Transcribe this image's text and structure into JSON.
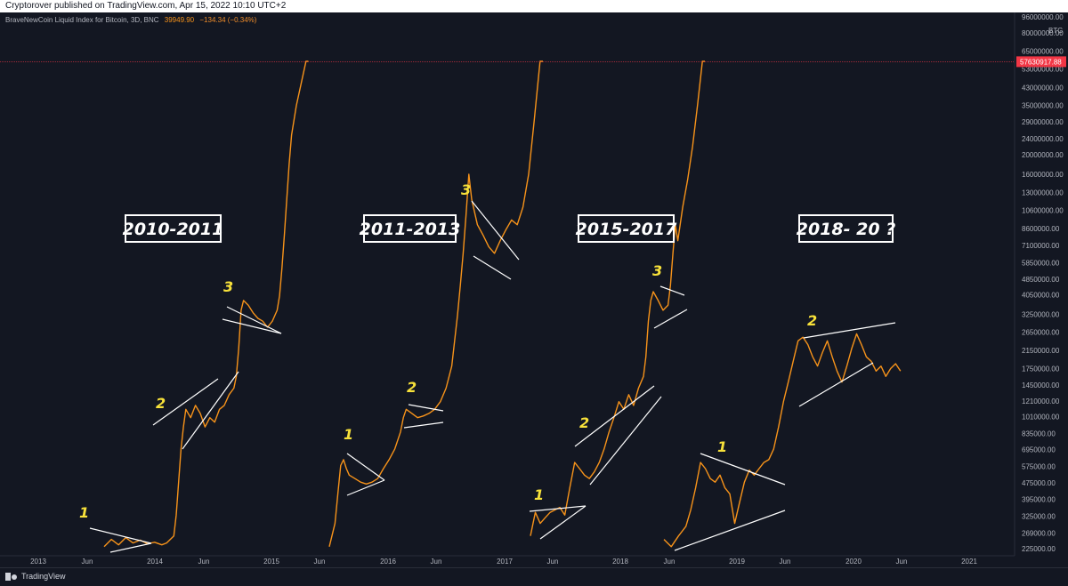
{
  "header": {
    "published": "Cryptorover published on TradingView.com, Apr 15, 2022 10:10 UTC+2"
  },
  "legend": {
    "title": "BraveNewCoin Liquid Index for Bitcoin, 3D, BNC",
    "value": "39949.90",
    "change": "−134.34 (−0.34%)"
  },
  "footer": {
    "brand": "TradingView"
  },
  "colors": {
    "background": "#131722",
    "price_line": "#f7931a",
    "trend_lines": "#ffffff",
    "labels": "#f7e13a",
    "price_tag": "#f23645"
  },
  "chart_data": {
    "type": "line",
    "scale": "log",
    "currency_label": "BTC",
    "y_ticks": [
      "225000.00",
      "269000.00",
      "325000.00",
      "395000.00",
      "475000.00",
      "575000.00",
      "695000.00",
      "835000.00",
      "1010000.00",
      "1210000.00",
      "1450000.00",
      "1750000.00",
      "2150000.00",
      "2650000.00",
      "3250000.00",
      "4050000.00",
      "4850000.00",
      "5850000.00",
      "7100000.00",
      "8600000.00",
      "10600000.00",
      "13000000.00",
      "16000000.00",
      "20000000.00",
      "24000000.00",
      "29000000.00",
      "35000000.00",
      "43000000.00",
      "53000000.00",
      "65000000.00",
      "80000000.00",
      "96000000.00"
    ],
    "x_ticks": [
      "2013",
      "Jun",
      "2014",
      "Jun",
      "2015",
      "Jun",
      "2016",
      "Jun",
      "2017",
      "Jun",
      "2018",
      "Jun",
      "2019",
      "Jun",
      "2020",
      "Jun",
      "2021"
    ],
    "current_price_tag": "57630917.88",
    "periods": [
      {
        "label": "2010-2011",
        "annotations": [
          "1",
          "2",
          "3"
        ],
        "series": [
          [
            0,
            230000
          ],
          [
            6,
            250000
          ],
          [
            12,
            235000
          ],
          [
            18,
            255000
          ],
          [
            24,
            240000
          ],
          [
            30,
            248000
          ],
          [
            36,
            238000
          ],
          [
            42,
            242000
          ],
          [
            48,
            235000
          ],
          [
            52,
            240000
          ],
          [
            58,
            260000
          ],
          [
            60,
            330000
          ],
          [
            62,
            480000
          ],
          [
            64,
            700000
          ],
          [
            66,
            900000
          ],
          [
            68,
            1100000
          ],
          [
            72,
            1000000
          ],
          [
            76,
            1150000
          ],
          [
            80,
            1050000
          ],
          [
            84,
            900000
          ],
          [
            88,
            1000000
          ],
          [
            92,
            950000
          ],
          [
            96,
            1100000
          ],
          [
            100,
            1150000
          ],
          [
            104,
            1300000
          ],
          [
            108,
            1400000
          ],
          [
            110,
            1600000
          ],
          [
            112,
            2200000
          ],
          [
            114,
            3400000
          ],
          [
            116,
            3800000
          ],
          [
            120,
            3600000
          ],
          [
            124,
            3300000
          ],
          [
            128,
            3100000
          ],
          [
            132,
            3000000
          ],
          [
            136,
            2800000
          ],
          [
            140,
            3000000
          ],
          [
            144,
            3400000
          ],
          [
            146,
            4000000
          ],
          [
            148,
            5500000
          ],
          [
            150,
            8000000
          ],
          [
            152,
            12000000
          ],
          [
            154,
            18000000
          ],
          [
            156,
            25000000
          ],
          [
            160,
            35000000
          ],
          [
            164,
            45000000
          ],
          [
            168,
            60000000
          ],
          [
            170,
            80000000
          ]
        ]
      },
      {
        "label": "2011-2013",
        "annotations": [
          "1",
          "2",
          "3"
        ],
        "series": [
          [
            0,
            230000
          ],
          [
            4,
            300000
          ],
          [
            6,
            420000
          ],
          [
            8,
            580000
          ],
          [
            10,
            620000
          ],
          [
            12,
            560000
          ],
          [
            14,
            520000
          ],
          [
            18,
            500000
          ],
          [
            22,
            480000
          ],
          [
            26,
            470000
          ],
          [
            30,
            480000
          ],
          [
            34,
            500000
          ],
          [
            38,
            560000
          ],
          [
            42,
            620000
          ],
          [
            46,
            700000
          ],
          [
            50,
            850000
          ],
          [
            52,
            1000000
          ],
          [
            54,
            1100000
          ],
          [
            58,
            1050000
          ],
          [
            62,
            1000000
          ],
          [
            66,
            1020000
          ],
          [
            70,
            1050000
          ],
          [
            74,
            1100000
          ],
          [
            78,
            1200000
          ],
          [
            82,
            1400000
          ],
          [
            86,
            1800000
          ],
          [
            88,
            2400000
          ],
          [
            90,
            3200000
          ],
          [
            92,
            4500000
          ],
          [
            94,
            6500000
          ],
          [
            96,
            10000000
          ],
          [
            98,
            16000000
          ],
          [
            100,
            12000000
          ],
          [
            104,
            9000000
          ],
          [
            108,
            8000000
          ],
          [
            112,
            7000000
          ],
          [
            116,
            6500000
          ],
          [
            120,
            7500000
          ],
          [
            124,
            8500000
          ],
          [
            128,
            9500000
          ],
          [
            132,
            9000000
          ],
          [
            136,
            11000000
          ],
          [
            140,
            16000000
          ],
          [
            144,
            30000000
          ],
          [
            148,
            60000000
          ],
          [
            150,
            80000000
          ]
        ]
      },
      {
        "label": "2015-2017",
        "annotations": [
          "1",
          "2",
          "3"
        ],
        "series": [
          [
            0,
            260000
          ],
          [
            4,
            340000
          ],
          [
            8,
            300000
          ],
          [
            12,
            320000
          ],
          [
            16,
            340000
          ],
          [
            20,
            350000
          ],
          [
            24,
            360000
          ],
          [
            28,
            330000
          ],
          [
            32,
            450000
          ],
          [
            36,
            600000
          ],
          [
            40,
            560000
          ],
          [
            44,
            520000
          ],
          [
            48,
            500000
          ],
          [
            52,
            540000
          ],
          [
            56,
            600000
          ],
          [
            60,
            700000
          ],
          [
            64,
            850000
          ],
          [
            68,
            1000000
          ],
          [
            72,
            1200000
          ],
          [
            76,
            1100000
          ],
          [
            80,
            1300000
          ],
          [
            84,
            1150000
          ],
          [
            88,
            1400000
          ],
          [
            92,
            1600000
          ],
          [
            94,
            2000000
          ],
          [
            96,
            3000000
          ],
          [
            98,
            3800000
          ],
          [
            100,
            4200000
          ],
          [
            104,
            3800000
          ],
          [
            108,
            3400000
          ],
          [
            112,
            3600000
          ],
          [
            114,
            4500000
          ],
          [
            116,
            6500000
          ],
          [
            118,
            9000000
          ],
          [
            120,
            7500000
          ],
          [
            124,
            11000000
          ],
          [
            128,
            15000000
          ],
          [
            132,
            22000000
          ],
          [
            136,
            35000000
          ],
          [
            140,
            60000000
          ],
          [
            142,
            80000000
          ]
        ]
      },
      {
        "label": "2018- 20 ?",
        "annotations": [
          "1",
          "2"
        ],
        "series": [
          [
            0,
            250000
          ],
          [
            6,
            230000
          ],
          [
            12,
            260000
          ],
          [
            18,
            290000
          ],
          [
            22,
            350000
          ],
          [
            26,
            450000
          ],
          [
            30,
            600000
          ],
          [
            34,
            560000
          ],
          [
            38,
            500000
          ],
          [
            42,
            480000
          ],
          [
            46,
            520000
          ],
          [
            50,
            450000
          ],
          [
            54,
            420000
          ],
          [
            58,
            300000
          ],
          [
            62,
            380000
          ],
          [
            66,
            480000
          ],
          [
            70,
            550000
          ],
          [
            74,
            520000
          ],
          [
            78,
            560000
          ],
          [
            82,
            600000
          ],
          [
            86,
            620000
          ],
          [
            90,
            700000
          ],
          [
            94,
            900000
          ],
          [
            98,
            1200000
          ],
          [
            102,
            1500000
          ],
          [
            106,
            1900000
          ],
          [
            110,
            2400000
          ],
          [
            114,
            2500000
          ],
          [
            118,
            2300000
          ],
          [
            122,
            2000000
          ],
          [
            126,
            1800000
          ],
          [
            130,
            2100000
          ],
          [
            134,
            2400000
          ],
          [
            138,
            2000000
          ],
          [
            142,
            1700000
          ],
          [
            146,
            1500000
          ],
          [
            150,
            1800000
          ],
          [
            154,
            2200000
          ],
          [
            158,
            2600000
          ],
          [
            162,
            2300000
          ],
          [
            166,
            2000000
          ],
          [
            170,
            1900000
          ],
          [
            174,
            1700000
          ],
          [
            178,
            1800000
          ],
          [
            182,
            1600000
          ],
          [
            186,
            1750000
          ],
          [
            190,
            1850000
          ],
          [
            194,
            1700000
          ]
        ]
      }
    ]
  }
}
